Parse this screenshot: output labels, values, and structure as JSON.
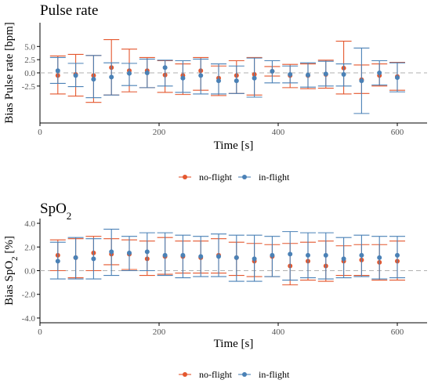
{
  "colors": {
    "no_flight": "#e4572e",
    "in_flight": "#4a81b6",
    "zero_line": "#b0b0b0",
    "axis": "#000000"
  },
  "chart_data": [
    {
      "id": "pulse",
      "type": "scatter",
      "title": "Pulse rate",
      "xlabel": "Time [s]",
      "ylabel": "Bias Pulse rate [bpm]",
      "xlim": [
        0,
        650
      ],
      "ylim": [
        -9.5,
        9.5
      ],
      "xticks": [
        0,
        200,
        400,
        600
      ],
      "xtick_labels": [
        "0",
        "200",
        "400",
        "600"
      ],
      "yticks": [
        5,
        2.5,
        0,
        -2.5
      ],
      "ytick_labels": [
        "5.0",
        "2.5",
        "0.0",
        "-2.5"
      ],
      "zero_line": 0,
      "grid": false,
      "legend_placement": "bottom",
      "series": [
        {
          "name": "no-flight",
          "color_key": "no_flight",
          "x": [
            30,
            60,
            90,
            120,
            150,
            180,
            210,
            240,
            270,
            300,
            330,
            360,
            390,
            420,
            450,
            480,
            510,
            540,
            570,
            600
          ],
          "y": [
            -0.5,
            -0.3,
            -0.5,
            1.0,
            0.4,
            0.4,
            -0.4,
            -0.5,
            0.4,
            -1.0,
            -0.5,
            -0.3,
            0.3,
            -0.5,
            -0.5,
            -0.3,
            0.9,
            -1.3,
            -0.5,
            -0.7
          ],
          "upper": [
            3.2,
            3.5,
            3.3,
            6.3,
            4.5,
            2.9,
            2.3,
            1.7,
            2.9,
            1.3,
            2.3,
            2.9,
            1.2,
            1.6,
            1.7,
            2.4,
            6.0,
            1.5,
            1.7,
            2.0
          ],
          "lower": [
            -4.0,
            -4.4,
            -5.6,
            -4.2,
            -3.6,
            -2.8,
            -3.7,
            -4.1,
            -3.3,
            -4.3,
            -3.9,
            -4.2,
            -0.6,
            -2.8,
            -3.0,
            -2.9,
            -4.0,
            -3.9,
            -2.5,
            -3.3
          ]
        },
        {
          "name": "in-flight",
          "color_key": "in_flight",
          "x": [
            30,
            60,
            90,
            120,
            150,
            180,
            210,
            240,
            270,
            300,
            330,
            360,
            390,
            420,
            450,
            480,
            510,
            540,
            570,
            600
          ],
          "y": [
            0.4,
            -0.5,
            -1.2,
            -0.8,
            -0.1,
            0.0,
            1.0,
            -1.0,
            -0.5,
            -1.5,
            -1.5,
            -1.0,
            0.3,
            -0.3,
            -0.4,
            -0.2,
            -0.3,
            -1.5,
            0.0,
            -0.9
          ],
          "upper": [
            2.9,
            1.8,
            3.3,
            1.9,
            1.8,
            2.6,
            2.4,
            2.3,
            2.6,
            1.7,
            1.3,
            2.8,
            2.3,
            1.3,
            1.9,
            2.2,
            1.7,
            4.7,
            2.3,
            1.9
          ],
          "lower": [
            -2.0,
            -2.6,
            -4.7,
            -4.2,
            -2.4,
            -2.8,
            -2.5,
            -3.7,
            -4.0,
            -4.0,
            -3.9,
            -4.6,
            -1.9,
            -1.9,
            -2.7,
            -2.5,
            -2.5,
            -7.7,
            -2.3,
            -3.6
          ]
        }
      ],
      "legend": {
        "entries": [
          {
            "label": "no-flight",
            "color_key": "no_flight"
          },
          {
            "label": "in-flight",
            "color_key": "in_flight"
          }
        ]
      }
    },
    {
      "id": "spo2",
      "type": "scatter",
      "title": "SpO",
      "title_sub": "2",
      "xlabel": "Time [s]",
      "ylabel": "Bias SpO",
      "ylabel_sub": "2",
      "ylabel_suffix": " [%]",
      "xlim": [
        0,
        650
      ],
      "ylim": [
        -4.4,
        4.4
      ],
      "xticks": [
        0,
        200,
        400,
        600
      ],
      "xtick_labels": [
        "0",
        "200",
        "400",
        "600"
      ],
      "yticks": [
        4,
        2,
        0,
        -2,
        -4
      ],
      "ytick_labels": [
        "4.0",
        "2.0",
        "0.0",
        "-2.0",
        "-4.0"
      ],
      "zero_line": 0,
      "grid": false,
      "legend_placement": "bottom",
      "series": [
        {
          "name": "no-flight",
          "color_key": "no_flight",
          "x": [
            30,
            60,
            90,
            120,
            150,
            180,
            210,
            240,
            270,
            300,
            330,
            360,
            390,
            420,
            450,
            480,
            510,
            540,
            570,
            600
          ],
          "y": [
            1.3,
            1.1,
            1.5,
            1.4,
            1.4,
            1.0,
            1.2,
            1.2,
            1.1,
            1.3,
            1.1,
            0.8,
            1.2,
            0.4,
            0.8,
            0.4,
            0.8,
            0.9,
            0.7,
            0.8
          ],
          "upper": [
            2.6,
            2.7,
            2.9,
            2.7,
            2.6,
            2.5,
            2.8,
            2.5,
            2.5,
            2.7,
            2.4,
            2.3,
            2.2,
            2.3,
            2.4,
            2.5,
            2.1,
            2.2,
            2.2,
            2.5
          ],
          "lower": [
            0.0,
            -0.6,
            0.0,
            0.5,
            0.1,
            -0.4,
            -0.3,
            -0.2,
            -0.2,
            -0.2,
            -0.4,
            -0.5,
            -0.5,
            -1.2,
            -0.8,
            -0.9,
            -0.4,
            -0.4,
            -0.8,
            -0.8
          ]
        },
        {
          "name": "in-flight",
          "color_key": "in_flight",
          "x": [
            30,
            60,
            90,
            120,
            150,
            180,
            210,
            240,
            270,
            300,
            330,
            360,
            390,
            420,
            450,
            480,
            510,
            540,
            570,
            600
          ],
          "y": [
            0.8,
            1.1,
            1.0,
            1.6,
            1.5,
            1.6,
            1.3,
            1.3,
            1.2,
            1.2,
            1.1,
            1.0,
            1.3,
            1.4,
            1.3,
            1.3,
            1.0,
            1.3,
            1.1,
            1.3
          ],
          "upper": [
            2.4,
            2.8,
            2.7,
            3.5,
            2.9,
            3.2,
            3.2,
            3.0,
            2.9,
            3.1,
            3.0,
            3.0,
            2.9,
            3.3,
            3.2,
            3.2,
            2.8,
            3.0,
            2.9,
            2.9
          ],
          "lower": [
            -0.7,
            -0.7,
            -0.7,
            -0.4,
            0.0,
            0.0,
            -0.4,
            -0.6,
            -0.5,
            -0.5,
            -0.9,
            -0.9,
            -0.5,
            -0.8,
            -0.6,
            -0.7,
            -0.6,
            -0.5,
            -0.7,
            -0.6
          ]
        }
      ],
      "legend": {
        "entries": [
          {
            "label": "no-flight",
            "color_key": "no_flight"
          },
          {
            "label": "in-flight",
            "color_key": "in_flight"
          }
        ]
      }
    }
  ]
}
